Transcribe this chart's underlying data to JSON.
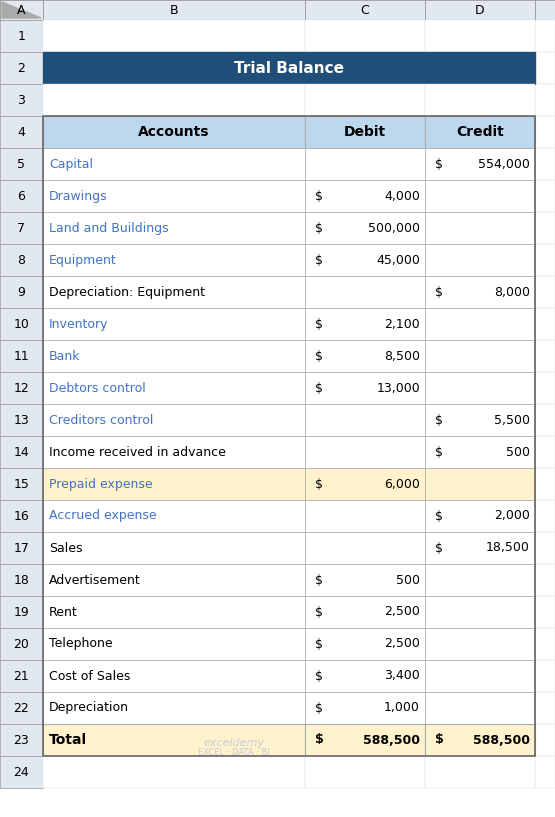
{
  "title": "Trial Balance",
  "title_bg": "#1F4E79",
  "title_color": "#FFFFFF",
  "header_bg": "#BDD7EE",
  "header_color": "#000000",
  "col_headers": [
    "Accounts",
    "Debit",
    "Credit"
  ],
  "rows": [
    {
      "account": "Capital",
      "debit": null,
      "credit": 554000,
      "highlight": false,
      "acc_color": "#4472C4"
    },
    {
      "account": "Drawings",
      "debit": 4000,
      "credit": null,
      "highlight": false,
      "acc_color": "#4472C4"
    },
    {
      "account": "Land and Buildings",
      "debit": 500000,
      "credit": null,
      "highlight": false,
      "acc_color": "#4472C4"
    },
    {
      "account": "Equipment",
      "debit": 45000,
      "credit": null,
      "highlight": false,
      "acc_color": "#4472C4"
    },
    {
      "account": "Depreciation: Equipment",
      "debit": null,
      "credit": 8000,
      "highlight": false,
      "acc_color": "#000000"
    },
    {
      "account": "Inventory",
      "debit": 2100,
      "credit": null,
      "highlight": false,
      "acc_color": "#4472C4"
    },
    {
      "account": "Bank",
      "debit": 8500,
      "credit": null,
      "highlight": false,
      "acc_color": "#4472C4"
    },
    {
      "account": "Debtors control",
      "debit": 13000,
      "credit": null,
      "highlight": false,
      "acc_color": "#4472C4"
    },
    {
      "account": "Creditors control",
      "debit": null,
      "credit": 5500,
      "highlight": false,
      "acc_color": "#4472C4"
    },
    {
      "account": "Income received in advance",
      "debit": null,
      "credit": 500,
      "highlight": false,
      "acc_color": "#000000"
    },
    {
      "account": "Prepaid expense",
      "debit": 6000,
      "credit": null,
      "highlight": true,
      "acc_color": "#4472C4"
    },
    {
      "account": "Accrued expense",
      "debit": null,
      "credit": 2000,
      "highlight": false,
      "acc_color": "#4472C4"
    },
    {
      "account": "Sales",
      "debit": null,
      "credit": 18500,
      "highlight": false,
      "acc_color": "#000000"
    },
    {
      "account": "Advertisement",
      "debit": 500,
      "credit": null,
      "highlight": false,
      "acc_color": "#000000"
    },
    {
      "account": "Rent",
      "debit": 2500,
      "credit": null,
      "highlight": false,
      "acc_color": "#000000"
    },
    {
      "account": "Telephone",
      "debit": 2500,
      "credit": null,
      "highlight": false,
      "acc_color": "#000000"
    },
    {
      "account": "Cost of Sales",
      "debit": 3400,
      "credit": null,
      "highlight": false,
      "acc_color": "#000000"
    },
    {
      "account": "Depreciation",
      "debit": 1000,
      "credit": null,
      "highlight": false,
      "acc_color": "#000000"
    }
  ],
  "total_row": {
    "account": "Total",
    "debit": 588500,
    "credit": 588500
  },
  "highlight_color": "#FFF2CC",
  "total_bg": "#FFF2CC",
  "grid_color": "#AAAAAA",
  "excel_header_bg": "#E2E8F0",
  "excel_header_color": "#000000",
  "watermark_text1": "exceldemy",
  "watermark_text2": "EXCEL · DATA · BI"
}
